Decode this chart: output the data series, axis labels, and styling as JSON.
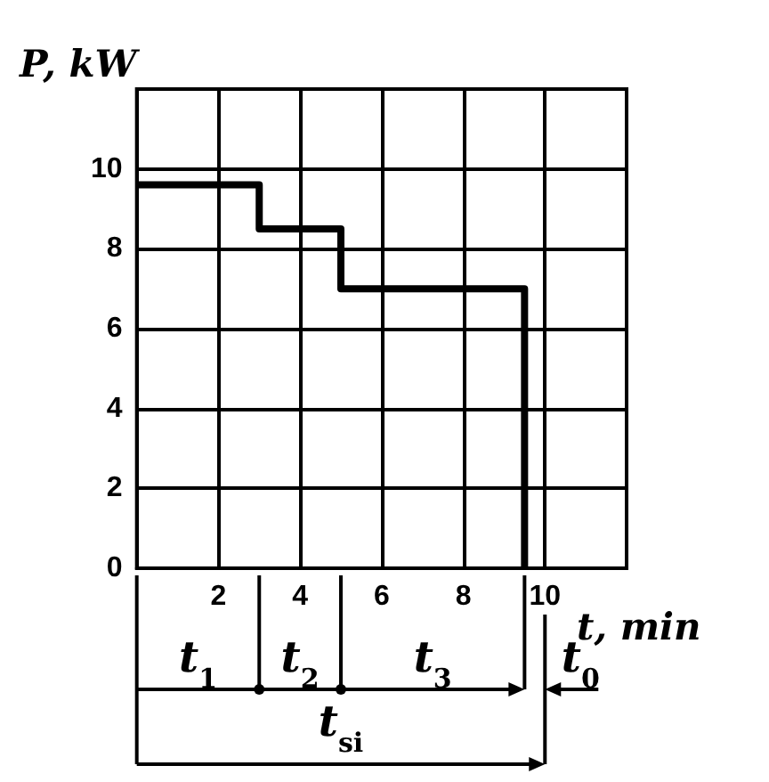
{
  "chart_data": {
    "type": "step",
    "xlabel": "t, min",
    "ylabel": "P, kW",
    "x": [
      0,
      3,
      5,
      9.5
    ],
    "values": [
      9.6,
      8.5,
      7,
      0
    ],
    "color": "#000000",
    "xlim": [
      0,
      12
    ],
    "xticks": [
      {
        "value": 0,
        "label": null
      },
      2,
      4,
      6,
      8,
      10
    ],
    "ylim": [
      0,
      12
    ],
    "yticks": [
      0,
      2,
      4,
      6,
      8,
      10
    ],
    "grid": true,
    "marker": "none",
    "line_style": "solid",
    "ref_lines": [
      {
        "axis": "x",
        "value": 10,
        "label": "t$_{0}$"
      }
    ],
    "annotations": [
      "t$_{1}$",
      "t$_{2}$",
      "t$_{3}$",
      "t$_{si}$"
    ]
  }
}
